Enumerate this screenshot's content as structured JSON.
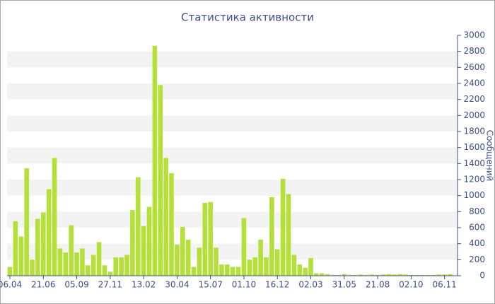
{
  "chart_data": {
    "type": "bar",
    "title": "Статистика активности",
    "y_label": "Сообщений",
    "color": "#b5e03a",
    "grid": true,
    "categories": [
      "06.04",
      null,
      null,
      null,
      null,
      null,
      "21.06",
      null,
      null,
      null,
      null,
      null,
      "05.09",
      null,
      null,
      null,
      null,
      null,
      "27.11",
      null,
      null,
      null,
      null,
      null,
      "13.02",
      null,
      null,
      null,
      null,
      null,
      "30.04",
      null,
      null,
      null,
      null,
      null,
      "15.07",
      null,
      null,
      null,
      null,
      null,
      "01.10",
      null,
      null,
      null,
      null,
      null,
      "16.12",
      null,
      null,
      null,
      null,
      null,
      "02.03",
      null,
      null,
      null,
      null,
      null,
      "31.05",
      null,
      null,
      null,
      null,
      null,
      "21.08",
      null,
      null,
      null,
      null,
      null,
      "02.10",
      null,
      null,
      null,
      null,
      null,
      "06.11",
      null
    ],
    "values": [
      110,
      680,
      490,
      1340,
      200,
      710,
      790,
      1080,
      1470,
      340,
      290,
      630,
      290,
      340,
      130,
      260,
      420,
      130,
      50,
      230,
      230,
      260,
      820,
      1230,
      620,
      860,
      2870,
      2380,
      1470,
      1280,
      390,
      610,
      450,
      110,
      350,
      910,
      920,
      350,
      140,
      140,
      110,
      110,
      720,
      200,
      230,
      450,
      230,
      980,
      330,
      1210,
      1020,
      260,
      140,
      100,
      220,
      30,
      30,
      20,
      10,
      10,
      20,
      10,
      10,
      15,
      10,
      15,
      10,
      15,
      20,
      15,
      20,
      15,
      10,
      10,
      10,
      10,
      10,
      15,
      15,
      20
    ],
    "ylim": [
      0,
      3000
    ],
    "yticks": [
      0,
      200,
      400,
      600,
      800,
      1000,
      1200,
      1400,
      1600,
      1800,
      2000,
      2200,
      2400,
      2600,
      2800,
      3000
    ]
  }
}
